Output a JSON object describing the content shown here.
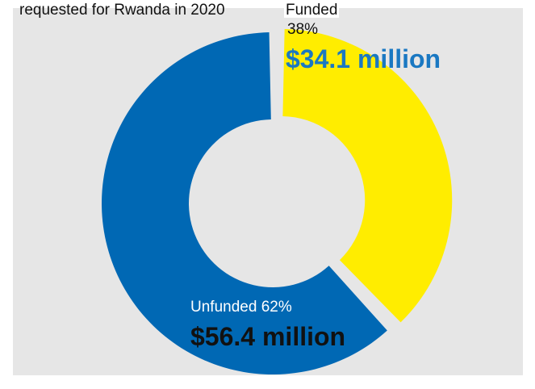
{
  "chart_data": {
    "type": "pie",
    "title": "requested for Rwanda in 2020",
    "slices": [
      {
        "name": "Funded",
        "percent": 38,
        "percent_label": "38%",
        "amount_label": "$34.1 million",
        "color": "#ffed00",
        "exploded": true
      },
      {
        "name": "Unfunded",
        "percent": 62,
        "percent_label": "62%",
        "amount_label": "$56.4 million",
        "color": "#0068b4",
        "exploded": false
      }
    ],
    "donut": true,
    "funded_amount_color": "#1a78c2",
    "background": "#e6e6e6"
  }
}
